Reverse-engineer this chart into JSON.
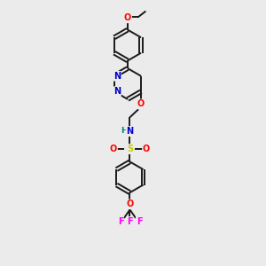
{
  "background_color": "#ebebeb",
  "figsize": [
    3.0,
    3.0
  ],
  "dpi": 100,
  "bond_color": "#1a1a1a",
  "bond_lw": 1.4,
  "atom_colors": {
    "O": "#ff0000",
    "N": "#0000cc",
    "S": "#cccc00",
    "F": "#ff00ff",
    "H": "#008080",
    "C": "#1a1a1a"
  },
  "font_size": 7.0,
  "atom_bg": "#ebebeb",
  "xlim": [
    0,
    10
  ],
  "ylim": [
    0,
    10
  ]
}
